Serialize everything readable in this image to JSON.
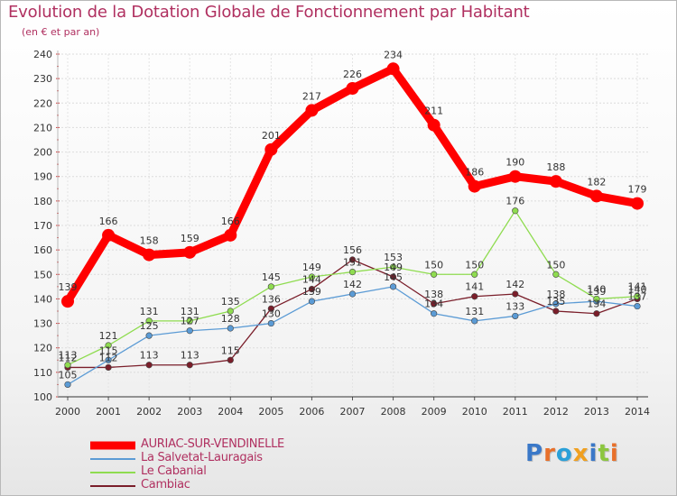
{
  "title": "Evolution de la Dotation Globale de Fonctionnement par Habitant",
  "subtitle": "(en € et par an)",
  "logo_text": "Proxiti",
  "chart_data": {
    "type": "line",
    "title": "Evolution de la Dotation Globale de Fonctionnement par Habitant",
    "ylabel": "(en € et par an)",
    "xlabel": "",
    "categories": [
      "2000",
      "2001",
      "2002",
      "2003",
      "2004",
      "2005",
      "2006",
      "2007",
      "2008",
      "2009",
      "2010",
      "2011",
      "2012",
      "2013",
      "2014"
    ],
    "ylim": [
      100,
      240
    ],
    "yticks": [
      100,
      110,
      120,
      130,
      140,
      150,
      160,
      170,
      180,
      190,
      200,
      210,
      220,
      230,
      240
    ],
    "grid": true,
    "series": [
      {
        "name": "AURIAC-SUR-VENDINELLE",
        "color": "#ff0000",
        "values": [
          139,
          166,
          158,
          159,
          166,
          201,
          217,
          226,
          234,
          211,
          186,
          190,
          188,
          182,
          179
        ]
      },
      {
        "name": "La Salvetat-Lauragais",
        "color": "#5b9bd5",
        "values": [
          105,
          115,
          125,
          127,
          128,
          130,
          139,
          142,
          145,
          134,
          131,
          133,
          138,
          139,
          137
        ]
      },
      {
        "name": "Le Cabanial",
        "color": "#8fdc50",
        "values": [
          113,
          121,
          131,
          131,
          135,
          145,
          149,
          151,
          153,
          150,
          150,
          176,
          150,
          140,
          141
        ]
      },
      {
        "name": "Cambiac",
        "color": "#7a1e2a",
        "values": [
          112,
          112,
          113,
          113,
          115,
          136,
          144,
          156,
          149,
          138,
          141,
          142,
          135,
          134,
          140
        ]
      }
    ]
  }
}
